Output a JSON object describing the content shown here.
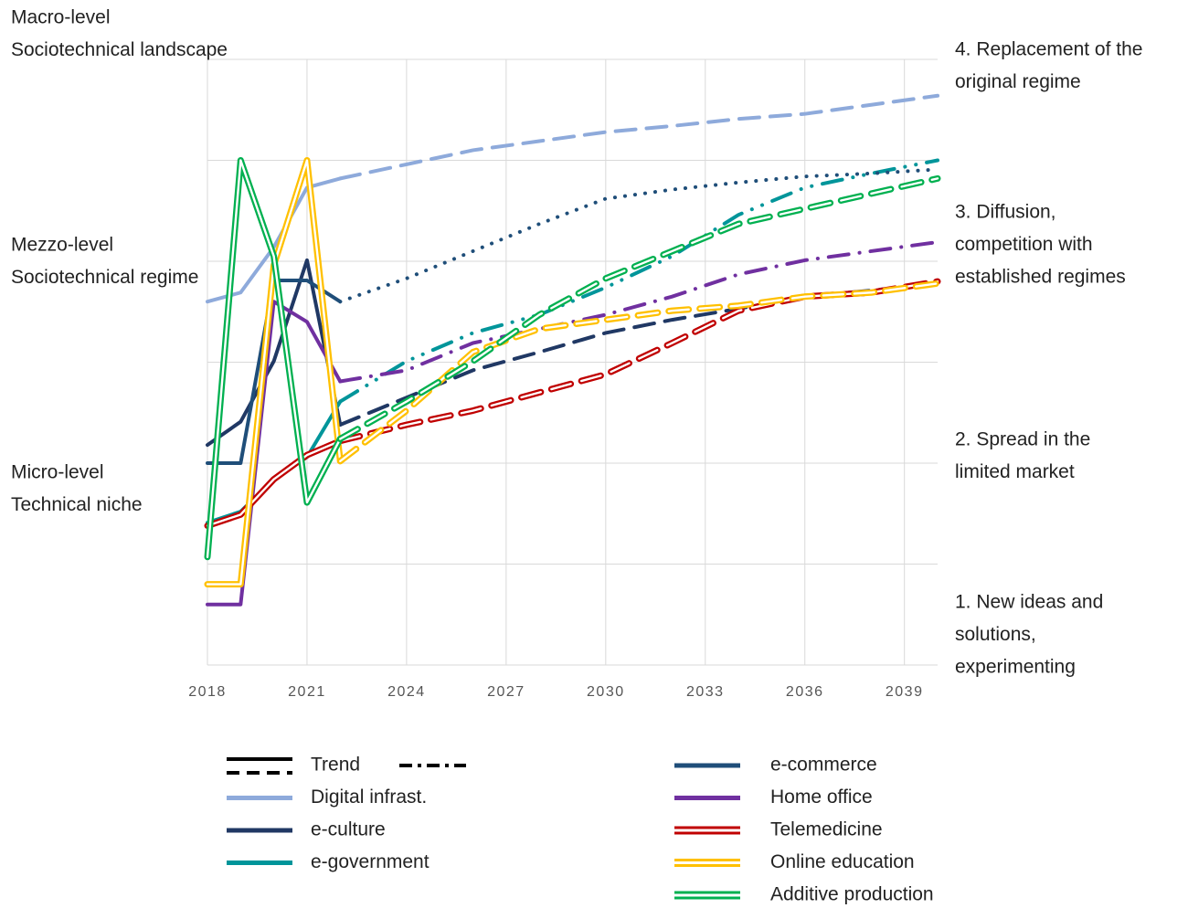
{
  "chart_data": {
    "type": "line",
    "left_labels": [
      [
        "Macro-level",
        "Sociotechnical landscape"
      ],
      [
        "Mezzo-level",
        "Sociotechnical regime"
      ],
      [
        "Micro-level",
        "Technical niche"
      ]
    ],
    "right_labels": [
      [
        "4. Replacement of the",
        "original regime"
      ],
      [
        "3. Diffusion,",
        "competition with",
        "established regimes"
      ],
      [
        "2. Spread in the",
        "limited market"
      ],
      [
        "1. New ideas and",
        "solutions,",
        "experimenting"
      ]
    ],
    "x": [
      2018,
      2019,
      2020,
      2021,
      2022,
      2024,
      2026,
      2028,
      2030,
      2032,
      2034,
      2036,
      2038,
      2040
    ],
    "xlim": [
      2018,
      2040
    ],
    "xticks": [
      2018,
      2021,
      2024,
      2027,
      2030,
      2033,
      2036,
      2039
    ],
    "ylim": [
      0,
      6
    ],
    "yticks": [
      0,
      1,
      2,
      3,
      4,
      5,
      6
    ],
    "grid": true,
    "projection_from": 2022,
    "trend_label": "Trend",
    "series": [
      {
        "name": "Digital infrast.",
        "color": "#8eaadb",
        "style": "solid",
        "trend": "dashed",
        "values": [
          3.6,
          3.69,
          4.14,
          4.73,
          4.82,
          4.96,
          5.1,
          5.19,
          5.28,
          5.34,
          5.41,
          5.46,
          5.55,
          5.64
        ]
      },
      {
        "name": "e-culture",
        "color": "#203864",
        "style": "solid",
        "trend": "dashed",
        "values": [
          2.18,
          2.41,
          3.01,
          4.01,
          2.38,
          2.65,
          2.92,
          3.1,
          3.29,
          3.42,
          3.53,
          3.65,
          3.71,
          3.78
        ]
      },
      {
        "name": "e-government",
        "color": "#00959a",
        "style": "solid",
        "trend": "dashdotdot",
        "values": [
          1.41,
          1.52,
          1.84,
          2.06,
          2.61,
          3.01,
          3.29,
          3.47,
          3.74,
          4.05,
          4.46,
          4.73,
          4.87,
          5.0
        ]
      },
      {
        "name": "e-commerce",
        "color": "#1f4e79",
        "style": "solid",
        "trend": "dotted",
        "values": [
          2.0,
          2.0,
          3.81,
          3.81,
          3.6,
          3.83,
          4.1,
          4.37,
          4.62,
          4.71,
          4.78,
          4.84,
          4.87,
          4.91
        ]
      },
      {
        "name": "Home office",
        "color": "#7030a0",
        "style": "solid",
        "trend": "dashdot",
        "values": [
          0.6,
          0.6,
          3.6,
          3.4,
          2.81,
          2.92,
          3.19,
          3.33,
          3.47,
          3.65,
          3.87,
          4.01,
          4.1,
          4.19
        ]
      },
      {
        "name": "Telemedicine",
        "color": "#c00000",
        "style": "double",
        "trend": "dashed",
        "values": [
          1.38,
          1.49,
          1.84,
          2.08,
          2.22,
          2.38,
          2.52,
          2.7,
          2.88,
          3.19,
          3.51,
          3.65,
          3.69,
          3.8
        ]
      },
      {
        "name": "Online education",
        "color": "#ffc000",
        "style": "double",
        "trend": "dashed",
        "values": [
          0.8,
          0.8,
          3.96,
          5.0,
          2.02,
          2.52,
          3.1,
          3.33,
          3.42,
          3.51,
          3.56,
          3.65,
          3.69,
          3.78
        ]
      },
      {
        "name": "Additive production",
        "color": "#00b050",
        "style": "double",
        "trend": "dashed",
        "values": [
          1.07,
          5.0,
          4.05,
          1.61,
          2.24,
          2.61,
          3.01,
          3.47,
          3.83,
          4.1,
          4.37,
          4.52,
          4.67,
          4.82
        ]
      }
    ]
  }
}
